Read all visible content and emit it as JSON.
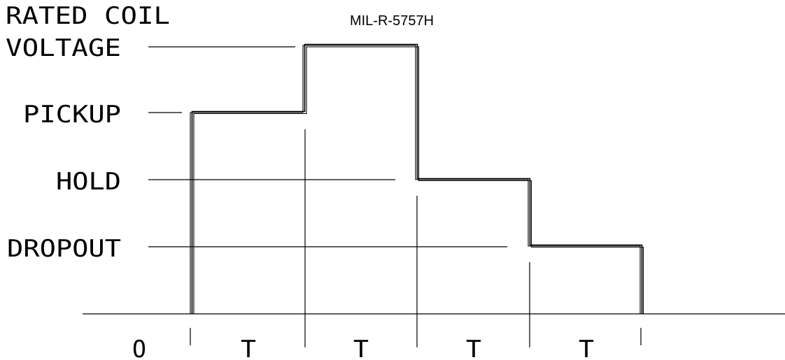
{
  "title": "MIL-R-5757H",
  "levels": {
    "rated_line1": "RATED COIL",
    "rated_line2": "VOLTAGE",
    "pickup": "PICKUP",
    "hold": "HOLD",
    "dropout": "DROPOUT"
  },
  "time_labels": [
    "O",
    "T",
    "T",
    "T",
    "T"
  ]
}
